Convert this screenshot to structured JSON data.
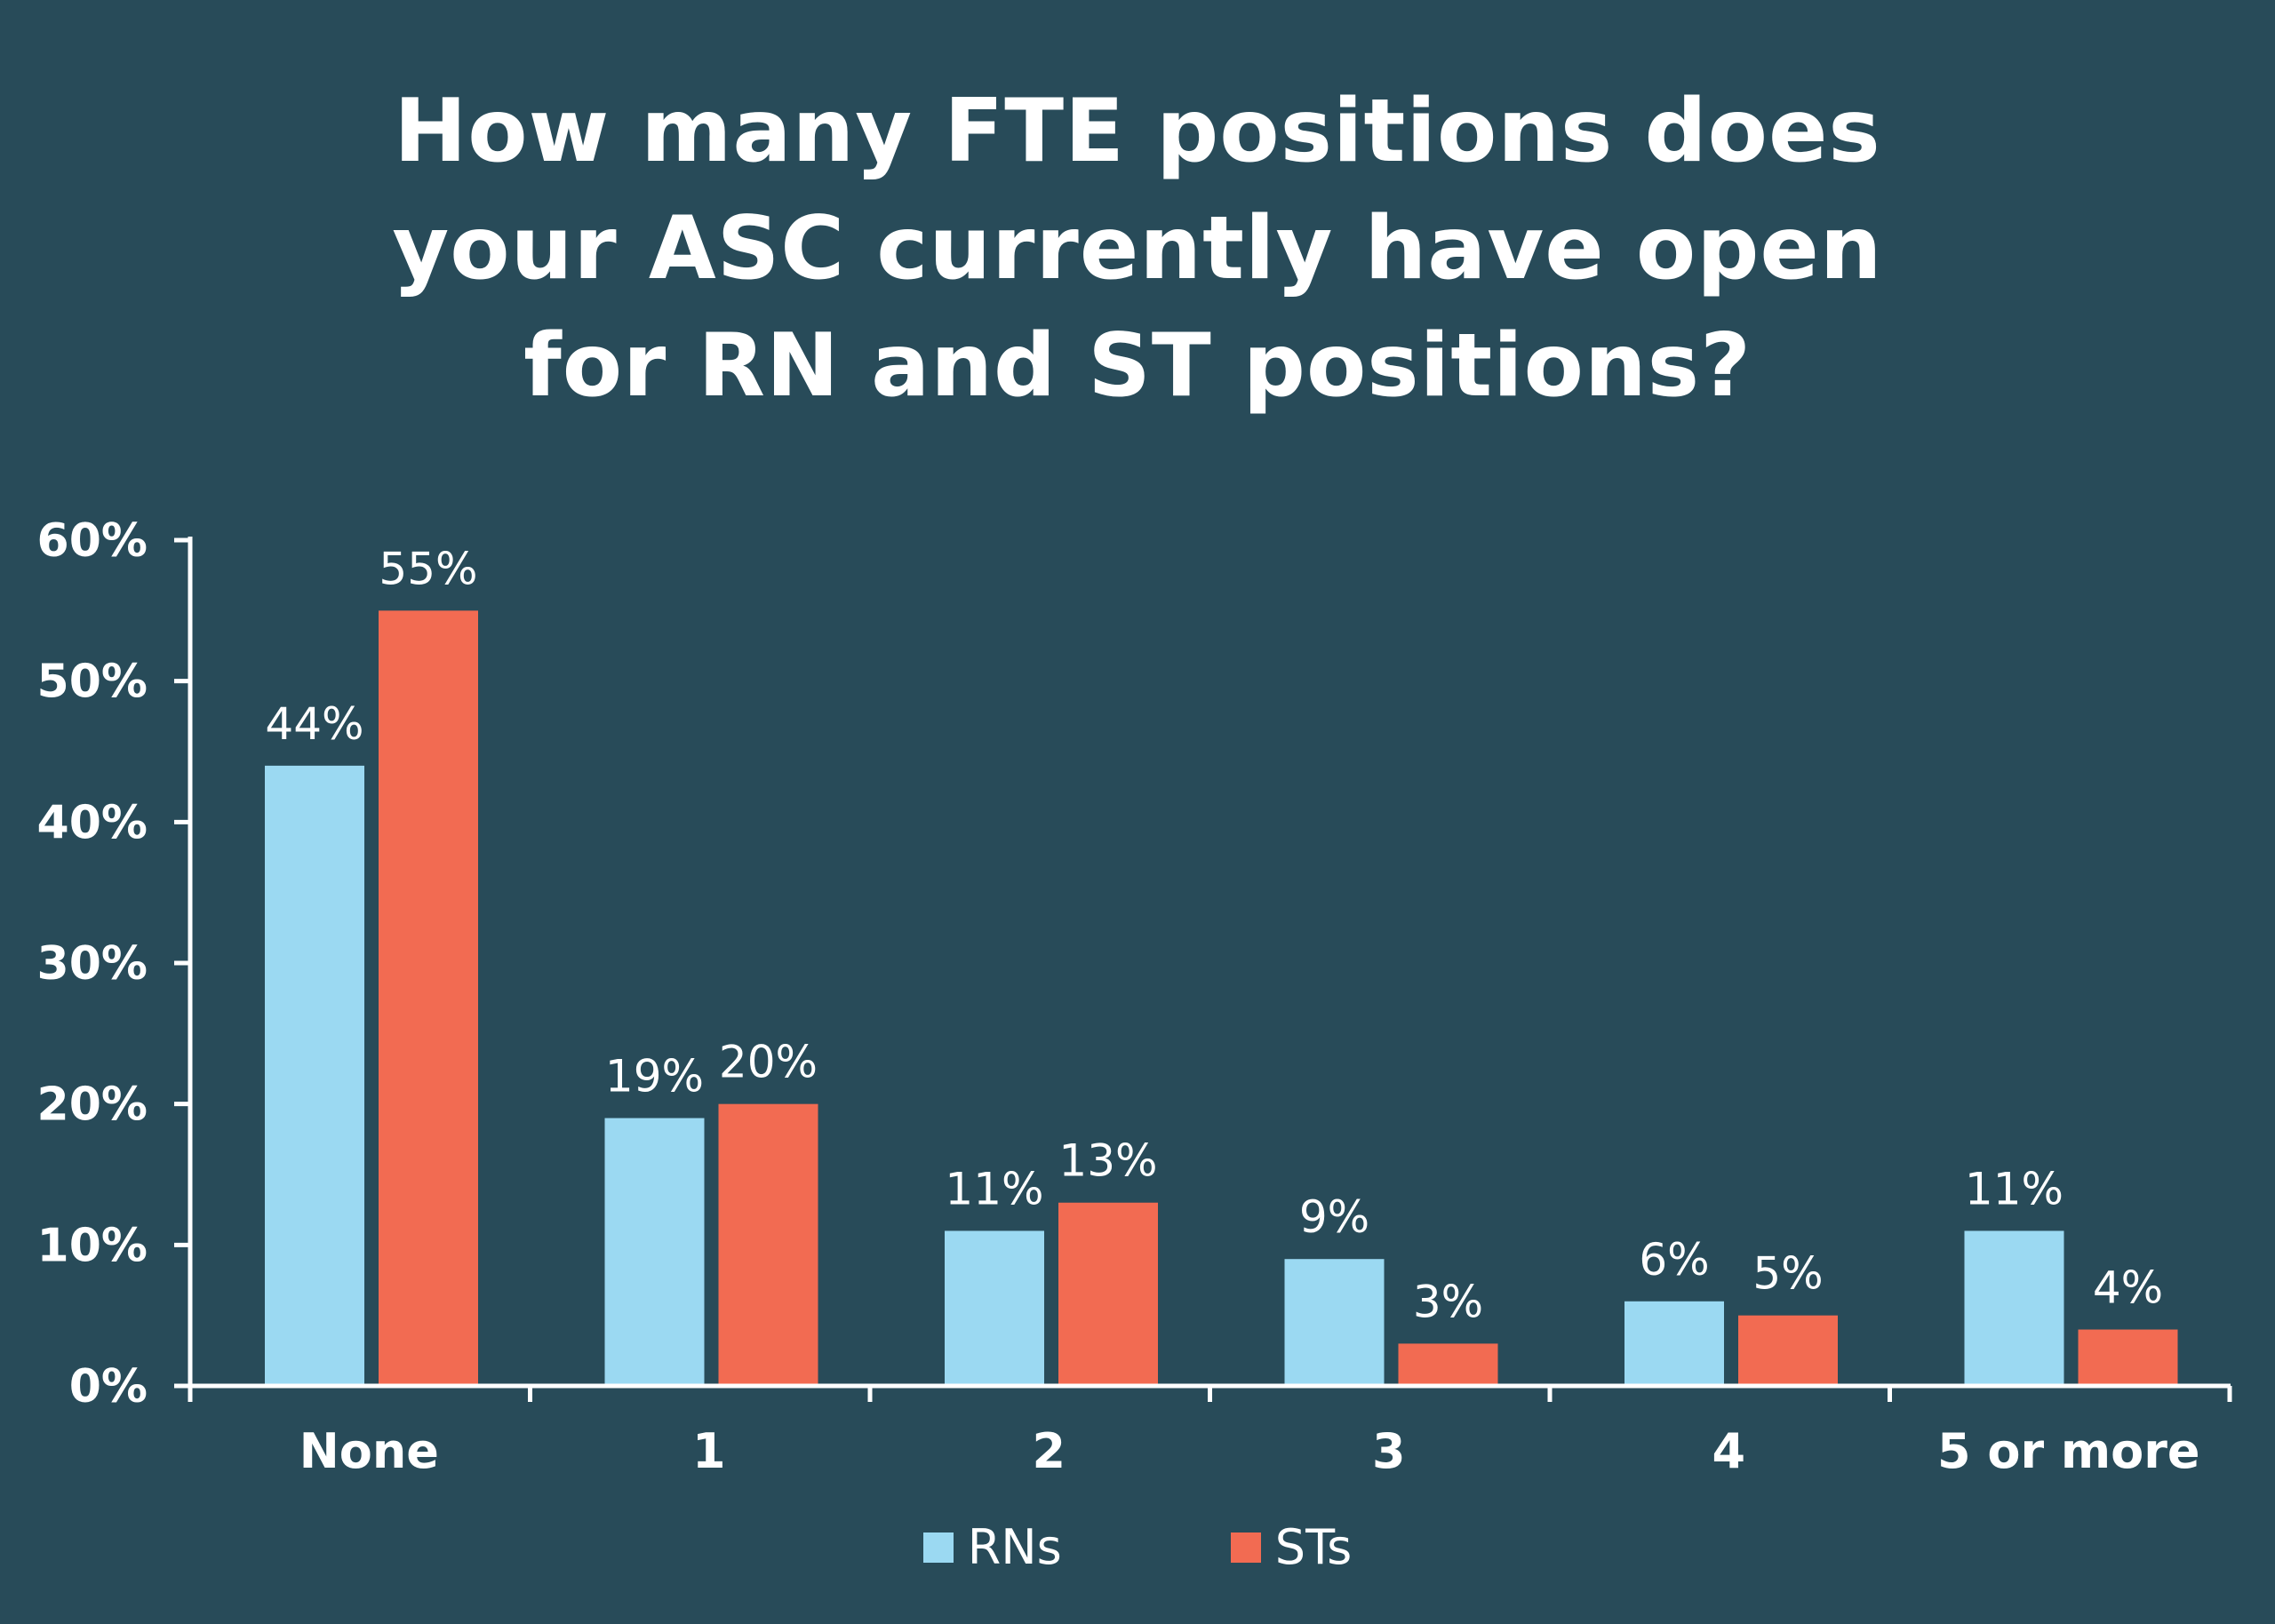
{
  "chart_data": {
    "type": "bar",
    "title_lines": [
      "How many FTE positions does",
      "your ASC currently have open",
      "for RN and ST positions?"
    ],
    "categories": [
      "None",
      "1",
      "2",
      "3",
      "4",
      "5 or more"
    ],
    "series": [
      {
        "name": "RNs",
        "color": "#9bd9f2",
        "values": [
          44,
          19,
          11,
          9,
          6,
          11
        ],
        "labels": [
          "44%",
          "19%",
          "11%",
          "9%",
          "6%",
          "11%"
        ]
      },
      {
        "name": "STs",
        "color": "#f26b52",
        "values": [
          55,
          20,
          13,
          3,
          5,
          4
        ],
        "labels": [
          "55%",
          "20%",
          "13%",
          "3%",
          "5%",
          "4%"
        ]
      }
    ],
    "y_ticks": [
      "0%",
      "10%",
      "20%",
      "30%",
      "40%",
      "50%",
      "60%"
    ],
    "ylim": [
      0,
      60
    ],
    "grid": false,
    "legend_position": "bottom-center",
    "background_color": "#284b59"
  }
}
